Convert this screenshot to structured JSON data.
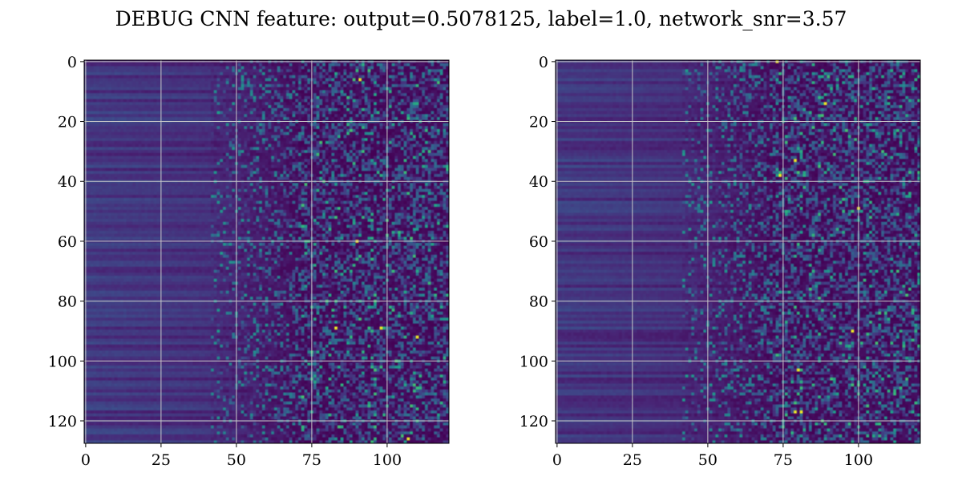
{
  "figure": {
    "title": "DEBUG CNN feature: output=0.5078125, label=1.0, network_snr=3.57"
  },
  "chart_data": [
    {
      "type": "heatmap",
      "title": "",
      "xlabel": "",
      "ylabel": "",
      "x_ticks": [
        0,
        25,
        50,
        75,
        100
      ],
      "y_ticks": [
        0,
        20,
        40,
        60,
        80,
        100,
        120
      ],
      "x_range": [
        -0.5,
        120.5
      ],
      "y_range": [
        127.5,
        -0.5
      ],
      "columns": 121,
      "rows": 128,
      "colormap": "viridis",
      "grid": true,
      "value_range": [
        0,
        1
      ],
      "bright_cells": [
        [
          91,
          6
        ],
        [
          90,
          60
        ],
        [
          98,
          89
        ],
        [
          83,
          89
        ],
        [
          110,
          92
        ],
        [
          107,
          126
        ]
      ]
    },
    {
      "type": "heatmap",
      "title": "",
      "xlabel": "",
      "ylabel": "",
      "x_ticks": [
        0,
        25,
        50,
        75,
        100
      ],
      "y_ticks": [
        0,
        20,
        40,
        60,
        80,
        100,
        120
      ],
      "x_range": [
        -0.5,
        120.5
      ],
      "y_range": [
        127.5,
        -0.5
      ],
      "columns": 121,
      "rows": 128,
      "colormap": "viridis",
      "grid": true,
      "value_range": [
        0,
        1
      ],
      "bright_cells": [
        [
          73,
          0
        ],
        [
          89,
          14
        ],
        [
          79,
          33
        ],
        [
          74,
          38
        ],
        [
          100,
          49
        ],
        [
          98,
          90
        ],
        [
          79,
          117
        ],
        [
          81,
          117
        ],
        [
          80,
          103
        ]
      ]
    }
  ]
}
